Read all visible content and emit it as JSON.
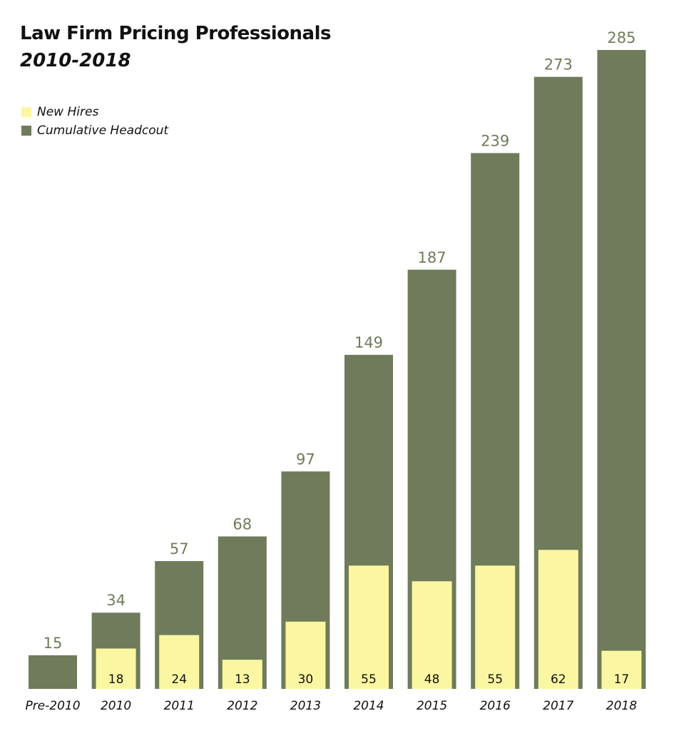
{
  "colors": {
    "cumulative": "#6f7b5a",
    "new_hires": "#fbf6a1",
    "total_label": "#6f7b5a",
    "inner_label": "#111111",
    "axis_label": "#111111"
  },
  "legend": {
    "items": [
      {
        "label": "New Hires",
        "color": "#fbf6a1"
      },
      {
        "label": "Cumulative Headcout",
        "color": "#6f7b5a"
      }
    ]
  },
  "chart_data": {
    "type": "bar",
    "title": "Law Firm Pricing Professionals",
    "subtitle": "2010-2018",
    "legend_position": "top-left",
    "grid": false,
    "xlabel": "",
    "ylabel": "",
    "ylim": [
      0,
      285
    ],
    "categories": [
      "Pre-2010",
      "2010",
      "2011",
      "2012",
      "2013",
      "2014",
      "2015",
      "2016",
      "2017",
      "2018"
    ],
    "series": [
      {
        "name": "Cumulative Headcout",
        "values": [
          15,
          34,
          57,
          68,
          97,
          149,
          187,
          239,
          273,
          285
        ]
      },
      {
        "name": "New Hires",
        "values": [
          null,
          18,
          24,
          13,
          30,
          55,
          48,
          55,
          62,
          17
        ]
      }
    ]
  }
}
